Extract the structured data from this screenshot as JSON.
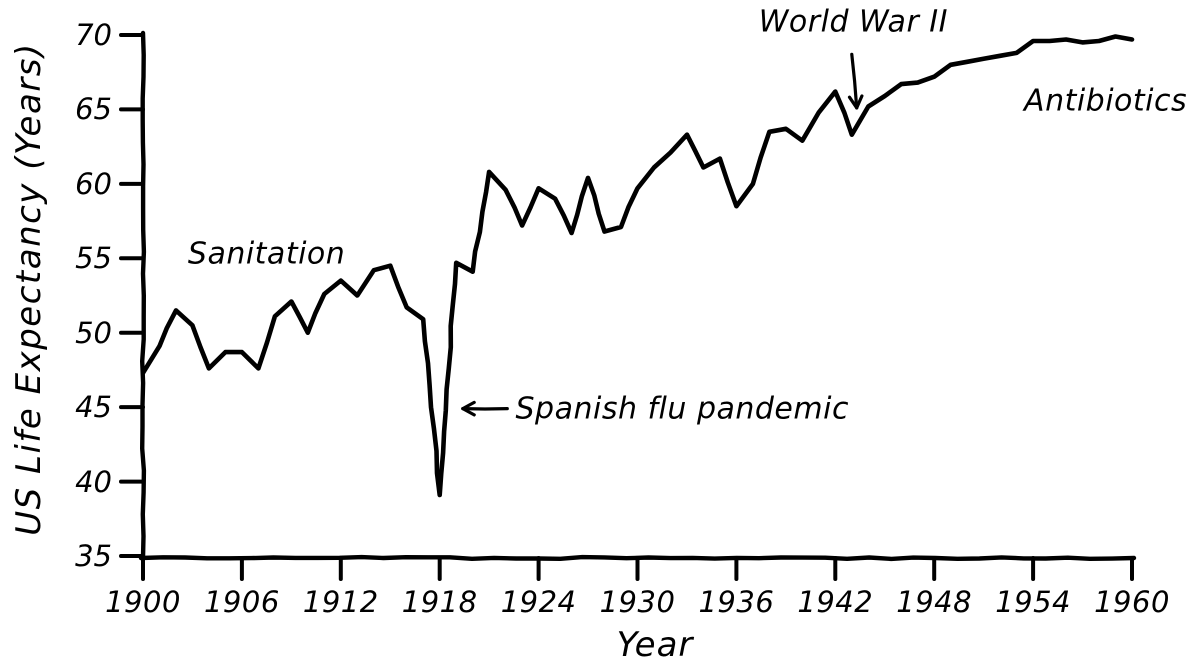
{
  "chart_data": {
    "type": "line",
    "title": "",
    "xlabel": "Year",
    "ylabel": "US Life Expectancy (Years)",
    "style": "hand-drawn xkcd-like, black ink on white, no grid, no legend",
    "grid": false,
    "legend": null,
    "ink_color": "#000000",
    "background_color": "#ffffff",
    "xlim": [
      1900,
      1960
    ],
    "ylim": [
      35,
      70
    ],
    "xticks": [
      1900,
      1906,
      1912,
      1918,
      1924,
      1930,
      1936,
      1942,
      1948,
      1954,
      1960
    ],
    "yticks": [
      35,
      40,
      45,
      50,
      55,
      60,
      65,
      70
    ],
    "x": [
      1900,
      1901,
      1902,
      1903,
      1904,
      1905,
      1906,
      1907,
      1908,
      1909,
      1910,
      1911,
      1912,
      1913,
      1914,
      1915,
      1916,
      1917,
      1918,
      1919,
      1920,
      1921,
      1922,
      1923,
      1924,
      1925,
      1926,
      1927,
      1928,
      1929,
      1930,
      1931,
      1932,
      1933,
      1934,
      1935,
      1936,
      1937,
      1938,
      1939,
      1940,
      1941,
      1942,
      1943,
      1944,
      1945,
      1946,
      1947,
      1948,
      1949,
      1950,
      1951,
      1952,
      1953,
      1954,
      1955,
      1956,
      1957,
      1958,
      1959,
      1960
    ],
    "y": [
      47.3,
      49.1,
      51.5,
      50.5,
      47.6,
      48.7,
      48.7,
      47.6,
      51.1,
      52.1,
      50.0,
      52.6,
      53.5,
      52.5,
      54.2,
      54.5,
      51.7,
      50.9,
      39.1,
      54.7,
      54.1,
      60.8,
      59.6,
      57.2,
      59.7,
      59.0,
      56.7,
      60.4,
      56.8,
      57.1,
      59.7,
      61.1,
      62.1,
      63.3,
      61.1,
      61.7,
      58.5,
      60.0,
      63.5,
      63.7,
      62.9,
      64.8,
      66.2,
      63.3,
      65.2,
      65.9,
      66.7,
      66.8,
      67.2,
      68.0,
      68.2,
      68.4,
      68.6,
      68.8,
      69.6,
      69.6,
      69.7,
      69.5,
      69.6,
      69.9,
      69.7
    ],
    "annotations": [
      {
        "id": "sanitation",
        "text": "Sanitation",
        "x": 1907.5,
        "y": 55.3,
        "align": "center",
        "arrow": null
      },
      {
        "id": "spanish-flu",
        "text": "Spanish flu pandemic",
        "x": 1922.6,
        "y": 44.9,
        "align": "left",
        "arrow": {
          "x1": 1922.1,
          "y1": 44.9,
          "x2": 1919.4,
          "y2": 44.9
        }
      },
      {
        "id": "world-war-ii",
        "text": "World War II",
        "x": 1943.1,
        "y": 70.9,
        "align": "center",
        "arrow": {
          "x1": 1943.0,
          "y1": 68.7,
          "x2": 1943.3,
          "y2": 65.1
        }
      },
      {
        "id": "antibiotics",
        "text": "Antibiotics",
        "x": 1958.4,
        "y": 65.6,
        "align": "center",
        "arrow": null
      }
    ]
  }
}
